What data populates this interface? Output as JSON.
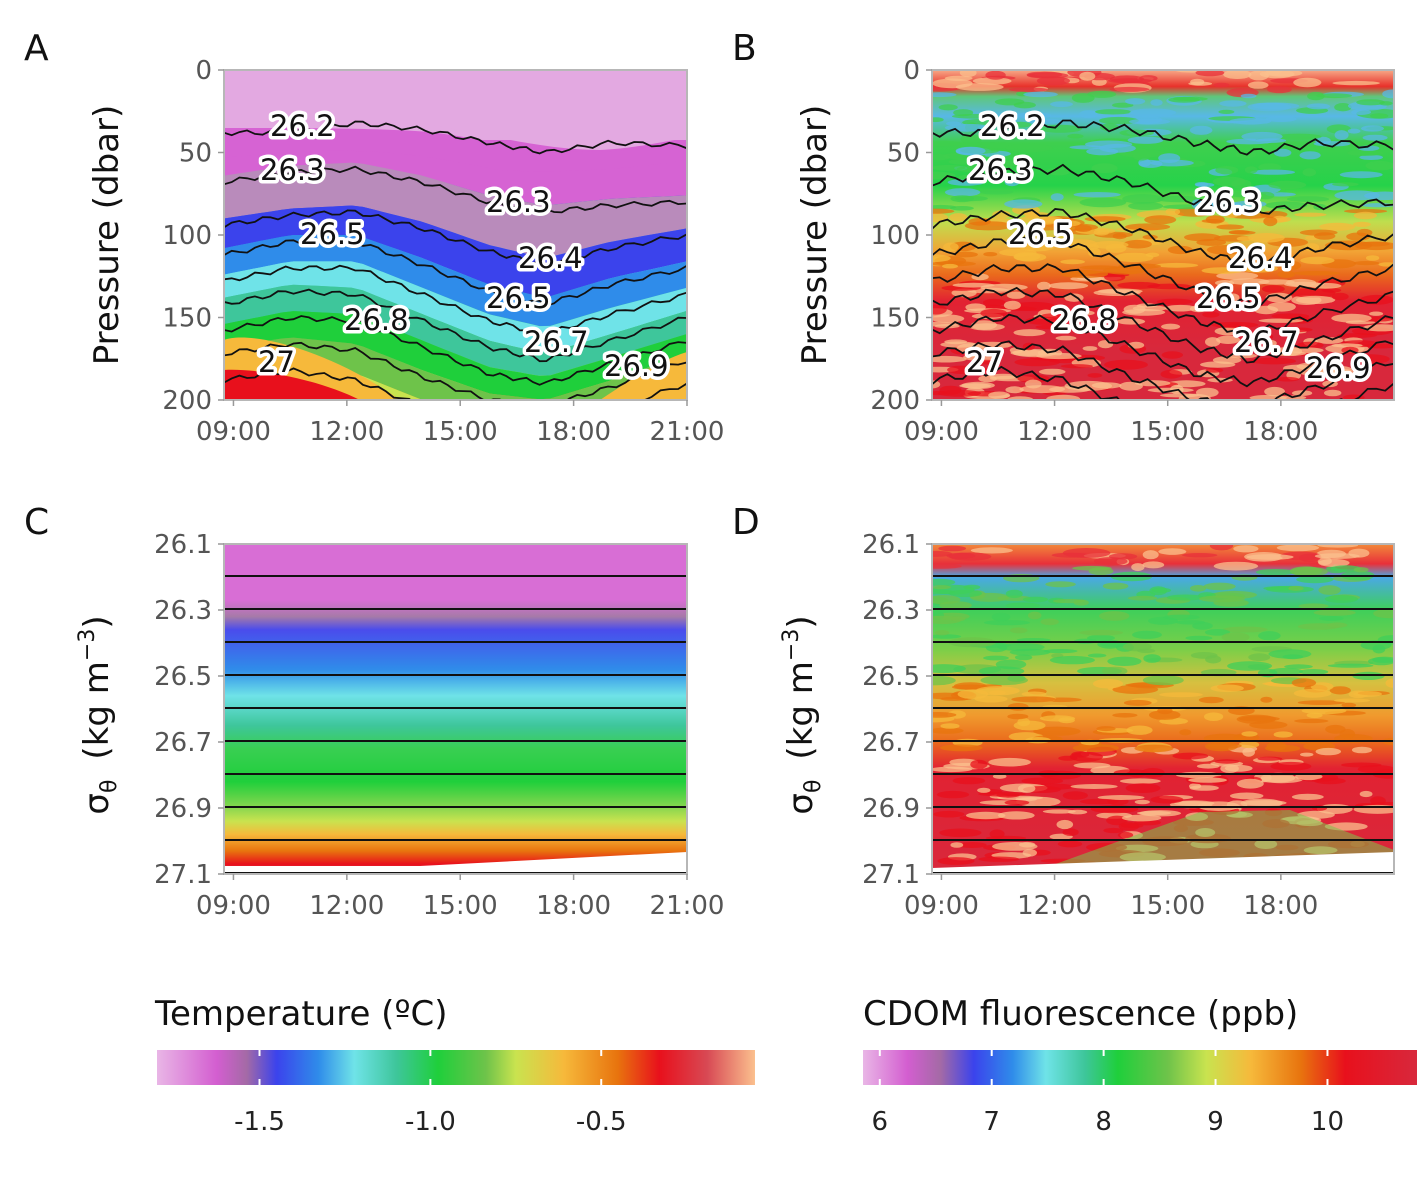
{
  "temperature_colors": [
    "#e9b6e6",
    "#d35ed0",
    "#a46aa6",
    "#3b43ec",
    "#2f8cea",
    "#6fe3e8",
    "#3ec69b",
    "#1fcf3b",
    "#6ec34a",
    "#c9e34f",
    "#f6b93b",
    "#e8740e",
    "#e8101c",
    "#d84954",
    "#fbc08e"
  ],
  "cdom_colors": [
    "#e9b6e6",
    "#d35ed0",
    "#a46aa6",
    "#3b43ec",
    "#2f8cea",
    "#6fe3e8",
    "#3ec69b",
    "#1fcf3b",
    "#6ec34a",
    "#c9e34f",
    "#f6b93b",
    "#e8740e",
    "#e8101c",
    "#d8283c",
    "#fbc08e"
  ],
  "chart_data": [
    {
      "panel": "A",
      "type": "heatmap",
      "variable": "Temperature",
      "ylabel": "Pressure (dbar)",
      "yticks": [
        "0",
        "50",
        "100",
        "150",
        "200"
      ],
      "xticks": [
        "09:00",
        "12:00",
        "15:00",
        "18:00",
        "21:00"
      ],
      "ylim": [
        200,
        0
      ],
      "contour_labels": [
        "26.2",
        "26.3",
        "26.3",
        "26.5",
        "26.4",
        "26.5",
        "26.8",
        "26.7",
        "27",
        "26.9"
      ],
      "isopycnals": [
        {
          "sigma": 26.2,
          "depth_dbar": [
            38,
            38,
            32,
            36,
            44,
            50,
            44,
            46
          ]
        },
        {
          "sigma": 26.3,
          "depth_dbar": [
            68,
            62,
            60,
            68,
            80,
            86,
            82,
            80
          ]
        },
        {
          "sigma": 26.4,
          "depth_dbar": [
            94,
            88,
            86,
            96,
            110,
            118,
            108,
            100
          ]
        },
        {
          "sigma": 26.5,
          "depth_dbar": [
            112,
            104,
            104,
            118,
            134,
            142,
            130,
            120
          ]
        },
        {
          "sigma": 26.6,
          "depth_dbar": [
            128,
            120,
            120,
            136,
            152,
            160,
            148,
            136
          ]
        },
        {
          "sigma": 26.7,
          "depth_dbar": [
            142,
            134,
            136,
            152,
            168,
            176,
            164,
            150
          ]
        },
        {
          "sigma": 26.8,
          "depth_dbar": [
            158,
            150,
            152,
            168,
            184,
            190,
            178,
            164
          ]
        },
        {
          "sigma": 26.9,
          "depth_dbar": [
            172,
            166,
            170,
            186,
            200,
            204,
            192,
            176
          ]
        },
        {
          "sigma": 27.0,
          "depth_dbar": [
            188,
            182,
            188,
            204,
            214,
            216,
            206,
            190
          ]
        }
      ]
    },
    {
      "panel": "B",
      "type": "heatmap",
      "variable": "CDOM fluorescence",
      "ylabel": "Pressure (dbar)",
      "yticks": [
        "0",
        "50",
        "100",
        "150",
        "200"
      ],
      "xticks": [
        "09:00",
        "12:00",
        "15:00",
        "18:00"
      ],
      "ylim": [
        200,
        0
      ],
      "contour_labels": [
        "26.2",
        "26.3",
        "26.3",
        "26.5",
        "26.4",
        "26.5",
        "26.8",
        "26.7",
        "27",
        "26.9"
      ]
    },
    {
      "panel": "C",
      "type": "heatmap",
      "variable": "Temperature",
      "ylabel_main": "σ",
      "ylabel_sub": "θ",
      "ylabel_unit": "(kg  m",
      "ylabel_sup": "−3",
      "ylabel_close": ")",
      "yticks": [
        "26.1",
        "26.3",
        "26.5",
        "26.7",
        "26.9",
        "27.1"
      ],
      "xticks": [
        "09:00",
        "12:00",
        "15:00",
        "18:00",
        "21:00"
      ],
      "ylim": [
        27.1,
        26.1
      ],
      "horizontal_lines_sigma": [
        26.2,
        26.3,
        26.4,
        26.5,
        26.6,
        26.7,
        26.8,
        26.9,
        27.0,
        27.1
      ]
    },
    {
      "panel": "D",
      "type": "heatmap",
      "variable": "CDOM fluorescence",
      "ylabel_main": "σ",
      "ylabel_sub": "θ",
      "ylabel_unit": "(kg  m",
      "ylabel_sup": "−3",
      "ylabel_close": ")",
      "yticks": [
        "26.1",
        "26.3",
        "26.5",
        "26.7",
        "26.9",
        "27.1"
      ],
      "xticks": [
        "09:00",
        "12:00",
        "15:00",
        "18:00"
      ],
      "ylim": [
        27.1,
        26.1
      ],
      "horizontal_lines_sigma": [
        26.2,
        26.3,
        26.4,
        26.5,
        26.6,
        26.7,
        26.8,
        26.9,
        27.0,
        27.1
      ]
    }
  ],
  "colorbars": [
    {
      "title": "Temperature (ºC)",
      "ticks": [
        "-1.5",
        "-1.0",
        "-0.5"
      ],
      "range": [
        -1.8,
        -0.05
      ]
    },
    {
      "title": "CDOM fluorescence (ppb)",
      "ticks": [
        "6",
        "7",
        "8",
        "9",
        "10"
      ],
      "range": [
        5.85,
        10.8
      ]
    }
  ]
}
